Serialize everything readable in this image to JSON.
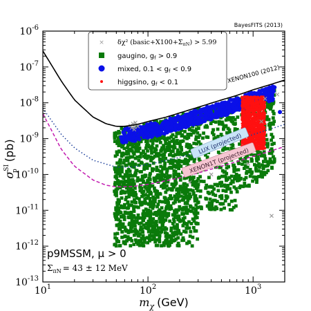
{
  "corner_label": "BayesFITS (2013)",
  "colors": {
    "gaugino": "#0a7a0a",
    "mixed": "#0a10e8",
    "higgsino": "#ff1010",
    "excluded": "#9a9a9a",
    "xenon100": "#000000",
    "lux": "#1a3d9a",
    "xenon1t": "#c21bb0"
  },
  "annotations": {
    "model": "p9MSSM, μ > 0",
    "sigma_pn": "Σ",
    "sigma_pn_sub": "πN",
    "sigma_pn_value": "= 43 ± 12 MeV"
  },
  "chart_data": {
    "type": "scatter",
    "xscale": "log",
    "yscale": "log",
    "xlim": [
      10,
      2000
    ],
    "ylim": [
      1e-13,
      1e-06
    ],
    "xlabel": "m",
    "xlabel_sub": "χ",
    "xlabel_unit": "(GeV)",
    "ylabel": "σ",
    "ylabel_sup": "SI",
    "ylabel_sub": "p",
    "ylabel_unit": "(pb)",
    "xticks": [
      {
        "value": 10,
        "base": "10",
        "exp": "1"
      },
      {
        "value": 100,
        "base": "10",
        "exp": "2"
      },
      {
        "value": 1000,
        "base": "10",
        "exp": "3"
      }
    ],
    "yticks": [
      {
        "value": 1e-13,
        "base": "10",
        "exp": "-13"
      },
      {
        "value": 1e-12,
        "base": "10",
        "exp": "-12"
      },
      {
        "value": 1e-11,
        "base": "10",
        "exp": "-11"
      },
      {
        "value": 1e-10,
        "base": "10",
        "exp": "-10"
      },
      {
        "value": 1e-09,
        "base": "10",
        "exp": "-9"
      },
      {
        "value": 1e-08,
        "base": "10",
        "exp": "-8"
      },
      {
        "value": 1e-07,
        "base": "10",
        "exp": "-7"
      },
      {
        "value": 1e-06,
        "base": "10",
        "exp": "-6"
      }
    ],
    "legend": {
      "position": "top-center",
      "entries": [
        {
          "key": "excluded",
          "marker": "×",
          "label": "δχ² (basic+X100+Σ",
          "label_sub": "πN",
          "label_tail": ") > 5.99"
        },
        {
          "key": "gaugino",
          "marker": "■",
          "label": "gaugino, g",
          "label_sub": "f",
          "label_tail": " > 0.9"
        },
        {
          "key": "mixed",
          "marker": "●",
          "label": "mixed, 0.1 < g",
          "label_sub": "f",
          "label_tail": " < 0.9"
        },
        {
          "key": "higgsino",
          "marker": "●",
          "label": "higgsino, g",
          "label_sub": "f",
          "label_tail": " < 0.1"
        }
      ]
    },
    "limits": [
      {
        "name": "XENON100 (2012)",
        "style": "solid",
        "x": [
          10,
          15,
          20,
          30,
          40,
          50,
          60,
          80,
          100,
          150,
          200,
          300,
          500,
          700,
          1000,
          1500,
          2000
        ],
        "y": [
          2.8e-07,
          4e-08,
          1.2e-08,
          4e-09,
          2.6e-09,
          2.2e-09,
          2.2e-09,
          2.5e-09,
          3e-09,
          4e-09,
          5.2e-09,
          7.5e-09,
          1.2e-08,
          1.6e-08,
          2.3e-08,
          3.3e-08,
          4.3e-08
        ]
      },
      {
        "name": "LUX (projected)",
        "style": "dotted",
        "x": [
          10,
          15,
          20,
          30,
          50,
          70,
          100,
          200,
          300,
          500,
          700,
          1000,
          1500,
          2000
        ],
        "y": [
          7e-09,
          1.3e-09,
          5.5e-10,
          2.5e-10,
          1.6e-10,
          1.6e-10,
          1.9e-10,
          3e-10,
          4.2e-10,
          6.5e-10,
          9e-10,
          1.3e-09,
          1.9e-09,
          2.5e-09
        ]
      },
      {
        "name": "XENON1T (projected)",
        "style": "dashed",
        "x": [
          10,
          15,
          20,
          30,
          40,
          50,
          70,
          100,
          200,
          300,
          500,
          700,
          1000,
          1500,
          2000
        ],
        "y": [
          5e-09,
          5e-10,
          1.7e-10,
          7e-11,
          5e-11,
          4.5e-11,
          4.6e-11,
          5.3e-11,
          8e-11,
          1.1e-10,
          1.7e-10,
          2.3e-10,
          3.2e-10,
          4.6e-10,
          6e-10
        ]
      }
    ],
    "series": [
      {
        "name": "gaugino",
        "region": {
          "x_min": 48,
          "x_max": 1600,
          "y_floor": 1e-12,
          "y_ceiling_ratio": 0.9
        }
      },
      {
        "name": "mixed",
        "region": {
          "x_min": 55,
          "x_max": 1600,
          "band_below_xenon100_ratio": [
            0.35,
            0.85
          ]
        }
      },
      {
        "name": "higgsino",
        "region": {
          "x_min": 780,
          "x_max": 1300,
          "y_min": 5e-10,
          "y_max": 1.5e-08
        }
      },
      {
        "name": "excluded",
        "region": {
          "x_min": 60,
          "x_max": 1700
        }
      }
    ]
  }
}
